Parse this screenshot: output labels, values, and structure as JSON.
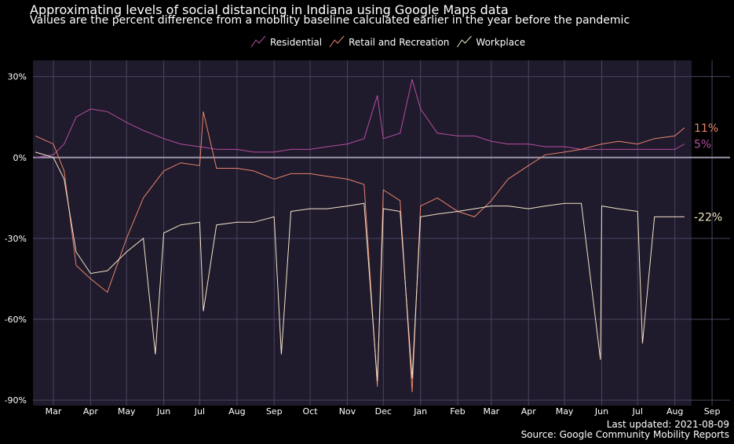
{
  "header": {
    "title": "Approximating levels of social distancing in Indiana using Google Maps data",
    "subtitle": "Values are the percent difference from a mobility baseline calculated earlier in the year before the pandemic"
  },
  "legend": [
    {
      "name": "Residential",
      "color": "#b64fa0"
    },
    {
      "name": "Retail and Recreation",
      "color": "#e8846c"
    },
    {
      "name": "Workplace",
      "color": "#f3e4c7"
    }
  ],
  "caption": {
    "updated": "Last updated: 2021-08-09",
    "source": "Source: Google Community Mobility Reports"
  },
  "colors": {
    "background": "#000000",
    "panel": "#1f1a2c",
    "grid": "#4b4560",
    "zero_line": "#9a94a8"
  },
  "chart_data": {
    "type": "line",
    "title": "Approximating levels of social distancing in Indiana using Google Maps data",
    "subtitle": "Values are the percent difference from a mobility baseline calculated earlier in the year before the pandemic",
    "x_tick_labels": [
      "Mar",
      "Apr",
      "May",
      "Jun",
      "Jul",
      "Aug",
      "Sep",
      "Oct",
      "Nov",
      "Dec",
      "Jan",
      "Feb",
      "Mar",
      "Apr",
      "May",
      "Jun",
      "Jul",
      "Aug",
      "Sep"
    ],
    "x_tick_dates": [
      "2020-03-01",
      "2020-04-01",
      "2020-05-01",
      "2020-06-01",
      "2020-07-01",
      "2020-08-01",
      "2020-09-01",
      "2020-10-01",
      "2020-11-01",
      "2020-12-01",
      "2021-01-01",
      "2021-02-01",
      "2021-03-01",
      "2021-04-01",
      "2021-05-01",
      "2021-06-01",
      "2021-07-01",
      "2021-08-01",
      "2021-09-01"
    ],
    "xlim": [
      "2020-02-13",
      "2021-09-16"
    ],
    "y_ticks": [
      30,
      0,
      -30,
      -60,
      -90
    ],
    "y_tick_labels": [
      "30%",
      "0%",
      "-30%",
      "-60%",
      "-90%"
    ],
    "ylim": [
      -92,
      36
    ],
    "grid": true,
    "legend_position": "top",
    "series": [
      {
        "name": "Residential",
        "color": "#b64fa0",
        "end_label": "5%",
        "x": [
          "2020-02-15",
          "2020-03-01",
          "2020-03-10",
          "2020-03-20",
          "2020-04-01",
          "2020-04-15",
          "2020-05-01",
          "2020-05-15",
          "2020-06-01",
          "2020-06-15",
          "2020-07-01",
          "2020-07-15",
          "2020-08-01",
          "2020-08-15",
          "2020-09-01",
          "2020-09-15",
          "2020-10-01",
          "2020-10-15",
          "2020-11-01",
          "2020-11-15",
          "2020-11-26",
          "2020-12-01",
          "2020-12-15",
          "2020-12-25",
          "2021-01-01",
          "2021-01-15",
          "2021-02-01",
          "2021-02-15",
          "2021-03-01",
          "2021-03-15",
          "2021-04-01",
          "2021-04-15",
          "2021-05-01",
          "2021-05-15",
          "2021-06-01",
          "2021-06-15",
          "2021-07-01",
          "2021-07-15",
          "2021-08-01",
          "2021-08-09"
        ],
        "y": [
          0,
          1,
          5,
          15,
          18,
          17,
          13,
          10,
          7,
          5,
          4,
          3,
          3,
          2,
          2,
          3,
          3,
          4,
          5,
          7,
          23,
          7,
          9,
          29,
          18,
          9,
          8,
          8,
          6,
          5,
          5,
          4,
          4,
          3,
          3,
          3,
          3,
          3,
          3,
          5
        ]
      },
      {
        "name": "Retail and Recreation",
        "color": "#e8846c",
        "end_label": "11%",
        "x": [
          "2020-02-15",
          "2020-03-01",
          "2020-03-10",
          "2020-03-20",
          "2020-04-01",
          "2020-04-15",
          "2020-05-01",
          "2020-05-15",
          "2020-06-01",
          "2020-06-15",
          "2020-07-01",
          "2020-07-04",
          "2020-07-15",
          "2020-08-01",
          "2020-08-15",
          "2020-09-01",
          "2020-09-15",
          "2020-10-01",
          "2020-10-15",
          "2020-11-01",
          "2020-11-15",
          "2020-11-26",
          "2020-12-01",
          "2020-12-15",
          "2020-12-25",
          "2021-01-01",
          "2021-01-15",
          "2021-02-01",
          "2021-02-15",
          "2021-03-01",
          "2021-03-15",
          "2021-04-01",
          "2021-04-15",
          "2021-05-01",
          "2021-05-15",
          "2021-06-01",
          "2021-06-15",
          "2021-07-01",
          "2021-07-15",
          "2021-08-01",
          "2021-08-09"
        ],
        "y": [
          8,
          5,
          -5,
          -40,
          -45,
          -50,
          -30,
          -15,
          -5,
          -2,
          -3,
          17,
          -4,
          -4,
          -5,
          -8,
          -6,
          -6,
          -7,
          -8,
          -10,
          -85,
          -12,
          -16,
          -87,
          -18,
          -15,
          -20,
          -22,
          -16,
          -8,
          -3,
          1,
          2,
          3,
          5,
          6,
          5,
          7,
          8,
          11
        ]
      },
      {
        "name": "Workplace",
        "color": "#f3e4c7",
        "end_label": "-22%",
        "x": [
          "2020-02-15",
          "2020-03-01",
          "2020-03-10",
          "2020-03-20",
          "2020-04-01",
          "2020-04-15",
          "2020-05-01",
          "2020-05-15",
          "2020-05-25",
          "2020-06-01",
          "2020-06-15",
          "2020-07-01",
          "2020-07-04",
          "2020-07-15",
          "2020-08-01",
          "2020-08-15",
          "2020-09-01",
          "2020-09-07",
          "2020-09-15",
          "2020-10-01",
          "2020-10-15",
          "2020-11-01",
          "2020-11-15",
          "2020-11-26",
          "2020-12-01",
          "2020-12-15",
          "2020-12-25",
          "2021-01-01",
          "2021-01-15",
          "2021-02-01",
          "2021-02-15",
          "2021-03-01",
          "2021-03-15",
          "2021-04-01",
          "2021-04-15",
          "2021-05-01",
          "2021-05-15",
          "2021-05-31",
          "2021-06-01",
          "2021-06-15",
          "2021-07-01",
          "2021-07-05",
          "2021-07-15",
          "2021-08-01",
          "2021-08-09"
        ],
        "y": [
          2,
          0,
          -8,
          -35,
          -43,
          -42,
          -35,
          -30,
          -73,
          -28,
          -25,
          -24,
          -57,
          -25,
          -24,
          -24,
          -22,
          -73,
          -20,
          -19,
          -19,
          -18,
          -17,
          -83,
          -19,
          -20,
          -82,
          -22,
          -21,
          -20,
          -19,
          -18,
          -18,
          -19,
          -18,
          -17,
          -17,
          -75,
          -18,
          -19,
          -20,
          -69,
          -22,
          -22,
          -22
        ]
      }
    ]
  }
}
